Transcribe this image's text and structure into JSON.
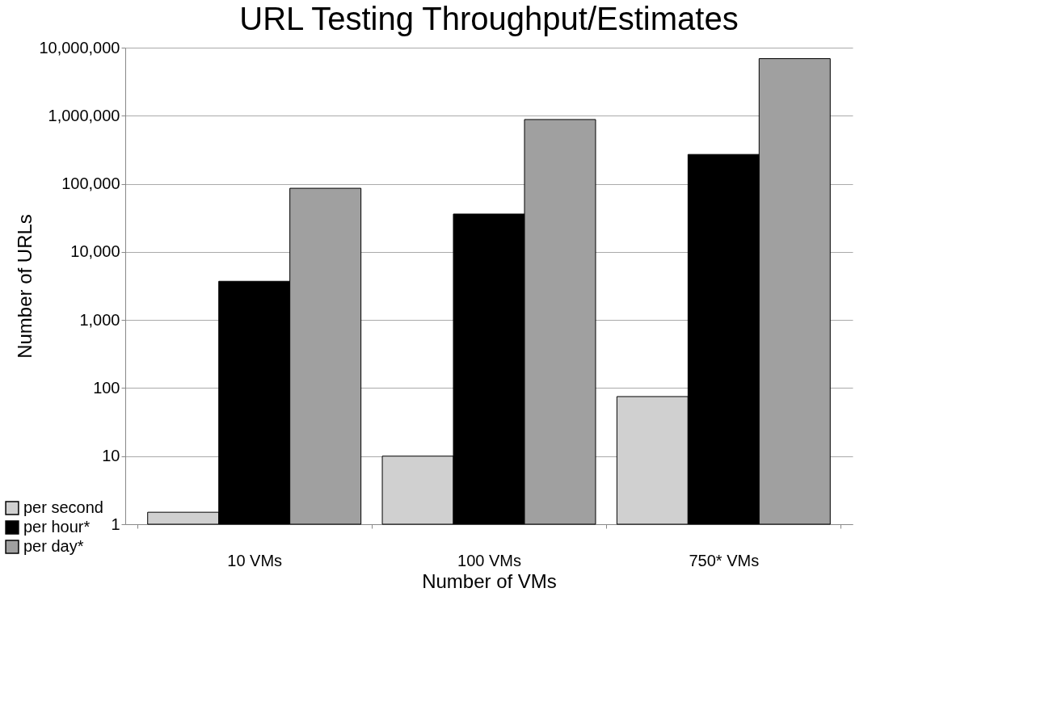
{
  "chart_data": {
    "type": "bar",
    "title": "URL Testing Throughput/Estimates",
    "xlabel": "Number of VMs",
    "ylabel": "Number of URLs",
    "categories": [
      "10 VMs",
      "100 VMs",
      "750* VMs"
    ],
    "series": [
      {
        "name": "per second",
        "color": "#d0d0d0",
        "values": [
          1.5,
          10,
          75
        ]
      },
      {
        "name": "per hour*",
        "color": "#000000",
        "values": [
          3700,
          36000,
          270000
        ]
      },
      {
        "name": "per day*",
        "color": "#a0a0a0",
        "values": [
          86000,
          880000,
          6900000
        ]
      }
    ],
    "log": "y",
    "ylim": [
      1,
      10000000
    ],
    "yticks": [
      1,
      10,
      100,
      {
        "value": 1000,
        "label": "1,000"
      },
      {
        "value": 10000,
        "label": "10,000"
      },
      {
        "value": 100000,
        "label": "100,000"
      },
      {
        "value": 1000000,
        "label": "1,000,000"
      },
      {
        "value": 10000000,
        "label": "10,000,000"
      }
    ],
    "grid": "y",
    "legend": "bottom left"
  }
}
